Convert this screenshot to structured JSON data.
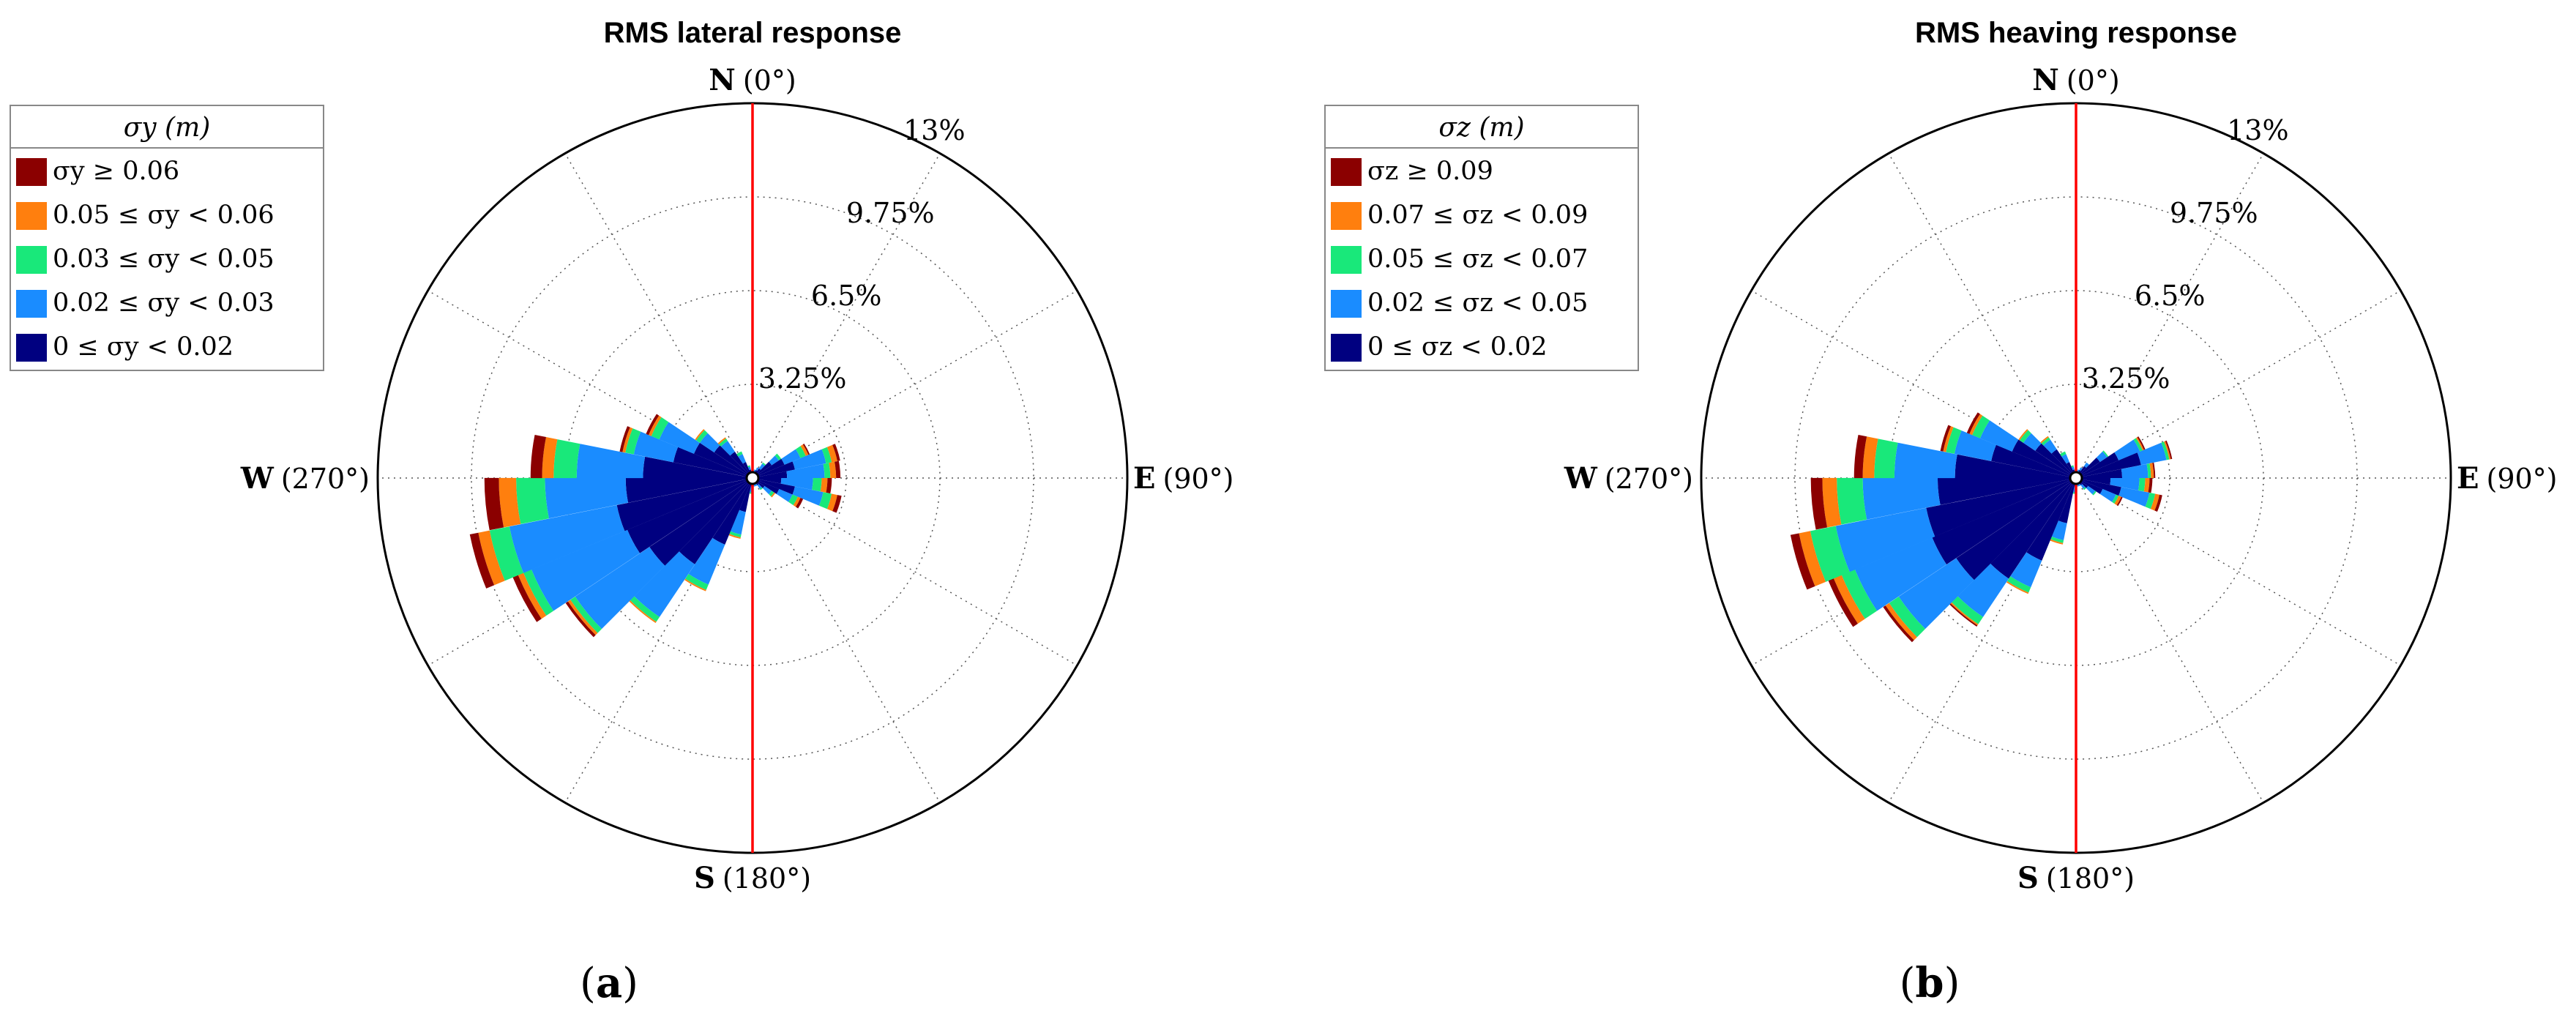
{
  "colors": {
    "bins": [
      "#000080",
      "#1a8cff",
      "#19e87a",
      "#ff7f0e",
      "#8b0000"
    ],
    "meridian": "#ff0000",
    "grid": "#555555",
    "frame": "#000000"
  },
  "panels": [
    {
      "label": "a",
      "chart_data": {
        "type": "polar-stacked-bar",
        "title": "RMS lateral response",
        "radial_unit": "%",
        "radial_max": 13,
        "ring_labels": [
          "3.25%",
          "6.5%",
          "9.75%",
          "13%"
        ],
        "ring_values": [
          3.25,
          6.5,
          9.75,
          13
        ],
        "directions": [
          {
            "letter": "N",
            "deg": "(0°)"
          },
          {
            "letter": "E",
            "deg": "(90°)"
          },
          {
            "letter": "S",
            "deg": "(180°)"
          },
          {
            "letter": "W",
            "deg": "(270°)"
          }
        ],
        "legend": {
          "title": "σy (m)",
          "items": [
            "σy ≥ 0.06",
            "0.05 ≤ σy < 0.06",
            "0.03 ≤ σy < 0.05",
            "0.02 ≤ σy < 0.03",
            "0 ≤ σy < 0.02"
          ]
        },
        "sector_width_deg": 11.25,
        "sectors": [
          {
            "dir": 5.6,
            "values": [
              0.15,
              0.05,
              0,
              0,
              0
            ]
          },
          {
            "dir": 16.9,
            "values": [
              0.2,
              0.1,
              0,
              0,
              0
            ]
          },
          {
            "dir": 28.1,
            "values": [
              0.3,
              0.1,
              0,
              0,
              0
            ]
          },
          {
            "dir": 39.4,
            "values": [
              0.4,
              0.2,
              0.05,
              0,
              0
            ]
          },
          {
            "dir": 50.6,
            "values": [
              0.8,
              0.3,
              0.1,
              0,
              0
            ]
          },
          {
            "dir": 61.9,
            "values": [
              1.2,
              0.6,
              0.2,
              0.1,
              0.05
            ]
          },
          {
            "dir": 73.1,
            "values": [
              1.5,
              1.1,
              0.2,
              0.2,
              0.1
            ]
          },
          {
            "dir": 84.4,
            "values": [
              1.2,
              1.3,
              0.2,
              0.2,
              0.15
            ]
          },
          {
            "dir": 95.6,
            "values": [
              1.0,
              1.1,
              0.3,
              0.2,
              0.15
            ]
          },
          {
            "dir": 106.9,
            "values": [
              1.5,
              1.0,
              0.3,
              0.2,
              0.15
            ]
          },
          {
            "dir": 118.1,
            "values": [
              1.0,
              0.5,
              0.2,
              0.1,
              0.1
            ]
          },
          {
            "dir": 129.4,
            "values": [
              0.5,
              0.3,
              0.1,
              0.05,
              0
            ]
          },
          {
            "dir": 140.6,
            "values": [
              0.3,
              0.15,
              0.05,
              0,
              0
            ]
          },
          {
            "dir": 151.9,
            "values": [
              0.2,
              0.1,
              0,
              0,
              0
            ]
          },
          {
            "dir": 163.1,
            "values": [
              0.2,
              0.1,
              0,
              0,
              0
            ]
          },
          {
            "dir": 174.4,
            "values": [
              0.2,
              0.1,
              0,
              0,
              0
            ]
          },
          {
            "dir": 185.6,
            "values": [
              0.3,
              0.2,
              0.05,
              0,
              0
            ]
          },
          {
            "dir": 196.9,
            "values": [
              1.2,
              0.8,
              0.1,
              0.05,
              0
            ]
          },
          {
            "dir": 208.1,
            "values": [
              2.5,
              1.5,
              0.2,
              0.05,
              0
            ]
          },
          {
            "dir": 219.4,
            "values": [
              3.6,
              2.2,
              0.2,
              0.05,
              0
            ]
          },
          {
            "dir": 230.6,
            "values": [
              4.3,
              3.1,
              0.2,
              0.1,
              0.1
            ]
          },
          {
            "dir": 241.9,
            "values": [
              4.7,
              3.6,
              0.3,
              0.2,
              0.2
            ]
          },
          {
            "dir": 253.1,
            "values": [
              4.8,
              3.8,
              0.7,
              0.4,
              0.3
            ]
          },
          {
            "dir": 264.4,
            "values": [
              4.4,
              2.8,
              1.0,
              0.6,
              0.5
            ]
          },
          {
            "dir": 275.6,
            "values": [
              3.8,
              2.3,
              0.8,
              0.4,
              0.4
            ]
          },
          {
            "dir": 286.9,
            "values": [
              2.8,
              1.4,
              0.3,
              0.1,
              0.1
            ]
          },
          {
            "dir": 298.1,
            "values": [
              2.2,
              1.3,
              0.3,
              0.1,
              0.1
            ]
          },
          {
            "dir": 309.4,
            "values": [
              1.6,
              0.6,
              0.15,
              0.05,
              0
            ]
          },
          {
            "dir": 320.6,
            "values": [
              1.1,
              0.45,
              0.1,
              0.05,
              0
            ]
          },
          {
            "dir": 331.9,
            "values": [
              0.6,
              0.3,
              0.1,
              0,
              0
            ]
          },
          {
            "dir": 343.1,
            "values": [
              0.3,
              0.1,
              0.05,
              0,
              0
            ]
          },
          {
            "dir": 354.4,
            "values": [
              0.15,
              0.05,
              0,
              0,
              0
            ]
          }
        ]
      }
    },
    {
      "label": "b",
      "chart_data": {
        "type": "polar-stacked-bar",
        "title": "RMS heaving response",
        "radial_unit": "%",
        "radial_max": 13,
        "ring_labels": [
          "3.25%",
          "6.5%",
          "9.75%",
          "13%"
        ],
        "ring_values": [
          3.25,
          6.5,
          9.75,
          13
        ],
        "directions": [
          {
            "letter": "N",
            "deg": "(0°)"
          },
          {
            "letter": "E",
            "deg": "(90°)"
          },
          {
            "letter": "S",
            "deg": "(180°)"
          },
          {
            "letter": "W",
            "deg": "(270°)"
          }
        ],
        "legend": {
          "title": "σz (m)",
          "items": [
            "σz ≥ 0.09",
            "0.07 ≤ σz < 0.09",
            "0.05 ≤ σz < 0.07",
            "0.02 ≤ σz < 0.05",
            "0 ≤ σz < 0.02"
          ]
        },
        "sector_width_deg": 11.25,
        "sectors": [
          {
            "dir": 5.6,
            "values": [
              0.15,
              0.05,
              0,
              0,
              0
            ]
          },
          {
            "dir": 16.9,
            "values": [
              0.2,
              0.1,
              0,
              0,
              0
            ]
          },
          {
            "dir": 28.1,
            "values": [
              0.3,
              0.1,
              0,
              0,
              0
            ]
          },
          {
            "dir": 39.4,
            "values": [
              0.5,
              0.15,
              0,
              0,
              0
            ]
          },
          {
            "dir": 50.6,
            "values": [
              1.0,
              0.3,
              0.05,
              0,
              0
            ]
          },
          {
            "dir": 61.9,
            "values": [
              1.6,
              0.8,
              0.1,
              0.05,
              0.05
            ]
          },
          {
            "dir": 73.1,
            "values": [
              2.3,
              0.9,
              0.1,
              0.05,
              0.05
            ]
          },
          {
            "dir": 84.4,
            "values": [
              1.6,
              0.9,
              0.1,
              0.1,
              0.05
            ]
          },
          {
            "dir": 95.6,
            "values": [
              1.2,
              1.0,
              0.2,
              0.15,
              0.1
            ]
          },
          {
            "dir": 106.9,
            "values": [
              1.6,
              1.0,
              0.2,
              0.15,
              0.1
            ]
          },
          {
            "dir": 118.1,
            "values": [
              1.0,
              0.5,
              0.1,
              0.1,
              0.05
            ]
          },
          {
            "dir": 129.4,
            "values": [
              0.5,
              0.3,
              0.05,
              0,
              0
            ]
          },
          {
            "dir": 140.6,
            "values": [
              0.3,
              0.15,
              0.05,
              0,
              0
            ]
          },
          {
            "dir": 151.9,
            "values": [
              0.2,
              0.1,
              0,
              0,
              0
            ]
          },
          {
            "dir": 163.1,
            "values": [
              0.2,
              0.1,
              0,
              0,
              0
            ]
          },
          {
            "dir": 174.4,
            "values": [
              0.2,
              0.1,
              0,
              0,
              0
            ]
          },
          {
            "dir": 185.6,
            "values": [
              0.3,
              0.2,
              0.05,
              0,
              0
            ]
          },
          {
            "dir": 196.9,
            "values": [
              1.6,
              0.6,
              0.1,
              0.05,
              0
            ]
          },
          {
            "dir": 208.1,
            "values": [
              3.1,
              1.0,
              0.2,
              0.05,
              0
            ]
          },
          {
            "dir": 219.4,
            "values": [
              4.2,
              1.6,
              0.3,
              0.05,
              0.05
            ]
          },
          {
            "dir": 230.6,
            "values": [
              5.0,
              2.4,
              0.4,
              0.15,
              0.1
            ]
          },
          {
            "dir": 241.9,
            "values": [
              5.4,
              2.9,
              0.5,
              0.3,
              0.2
            ]
          },
          {
            "dir": 253.1,
            "values": [
              5.3,
              3.2,
              0.9,
              0.4,
              0.3
            ]
          },
          {
            "dir": 264.4,
            "values": [
              4.8,
              2.6,
              0.9,
              0.5,
              0.4
            ]
          },
          {
            "dir": 275.6,
            "values": [
              4.2,
              2.1,
              0.7,
              0.4,
              0.3
            ]
          },
          {
            "dir": 286.9,
            "values": [
              3.0,
              1.3,
              0.3,
              0.1,
              0.1
            ]
          },
          {
            "dir": 298.1,
            "values": [
              2.4,
              1.2,
              0.3,
              0.1,
              0.1
            ]
          },
          {
            "dir": 309.4,
            "values": [
              1.7,
              0.5,
              0.15,
              0.05,
              0
            ]
          },
          {
            "dir": 320.6,
            "values": [
              1.2,
              0.4,
              0.1,
              0.05,
              0
            ]
          },
          {
            "dir": 331.9,
            "values": [
              0.6,
              0.3,
              0.1,
              0,
              0
            ]
          },
          {
            "dir": 343.1,
            "values": [
              0.3,
              0.1,
              0.05,
              0,
              0
            ]
          },
          {
            "dir": 354.4,
            "values": [
              0.15,
              0.05,
              0,
              0,
              0
            ]
          }
        ]
      }
    }
  ]
}
